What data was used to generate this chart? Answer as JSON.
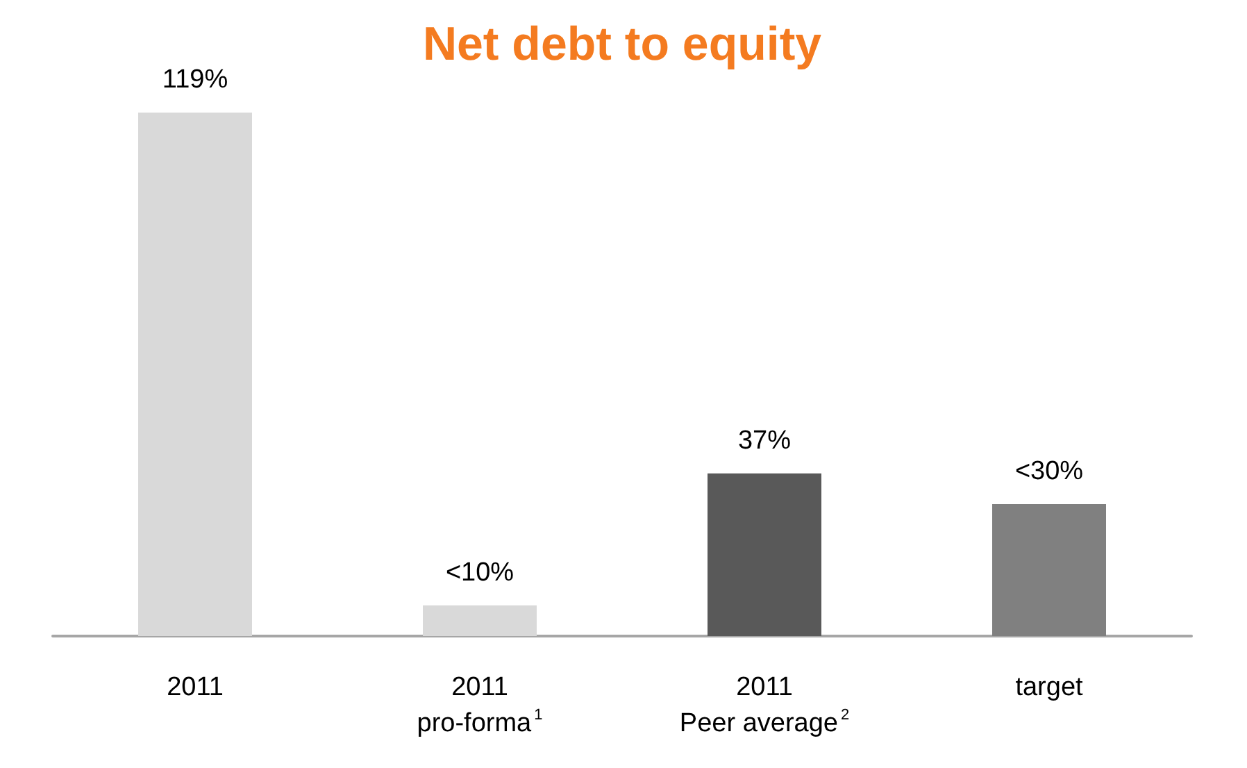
{
  "chart_data": {
    "type": "bar",
    "title": "Net debt to equity",
    "categories": [
      "2011",
      "2011\npro-forma$^{1}$",
      "2011\nPeer average$^{2}$",
      "target"
    ],
    "values": [
      119,
      7,
      37,
      30
    ],
    "value_labels": [
      "119%",
      "<10%",
      "37%",
      "<30%"
    ],
    "colors": [
      "#d9d9d9",
      "#d9d9d9",
      "#595959",
      "#808080"
    ],
    "grid": false
  }
}
